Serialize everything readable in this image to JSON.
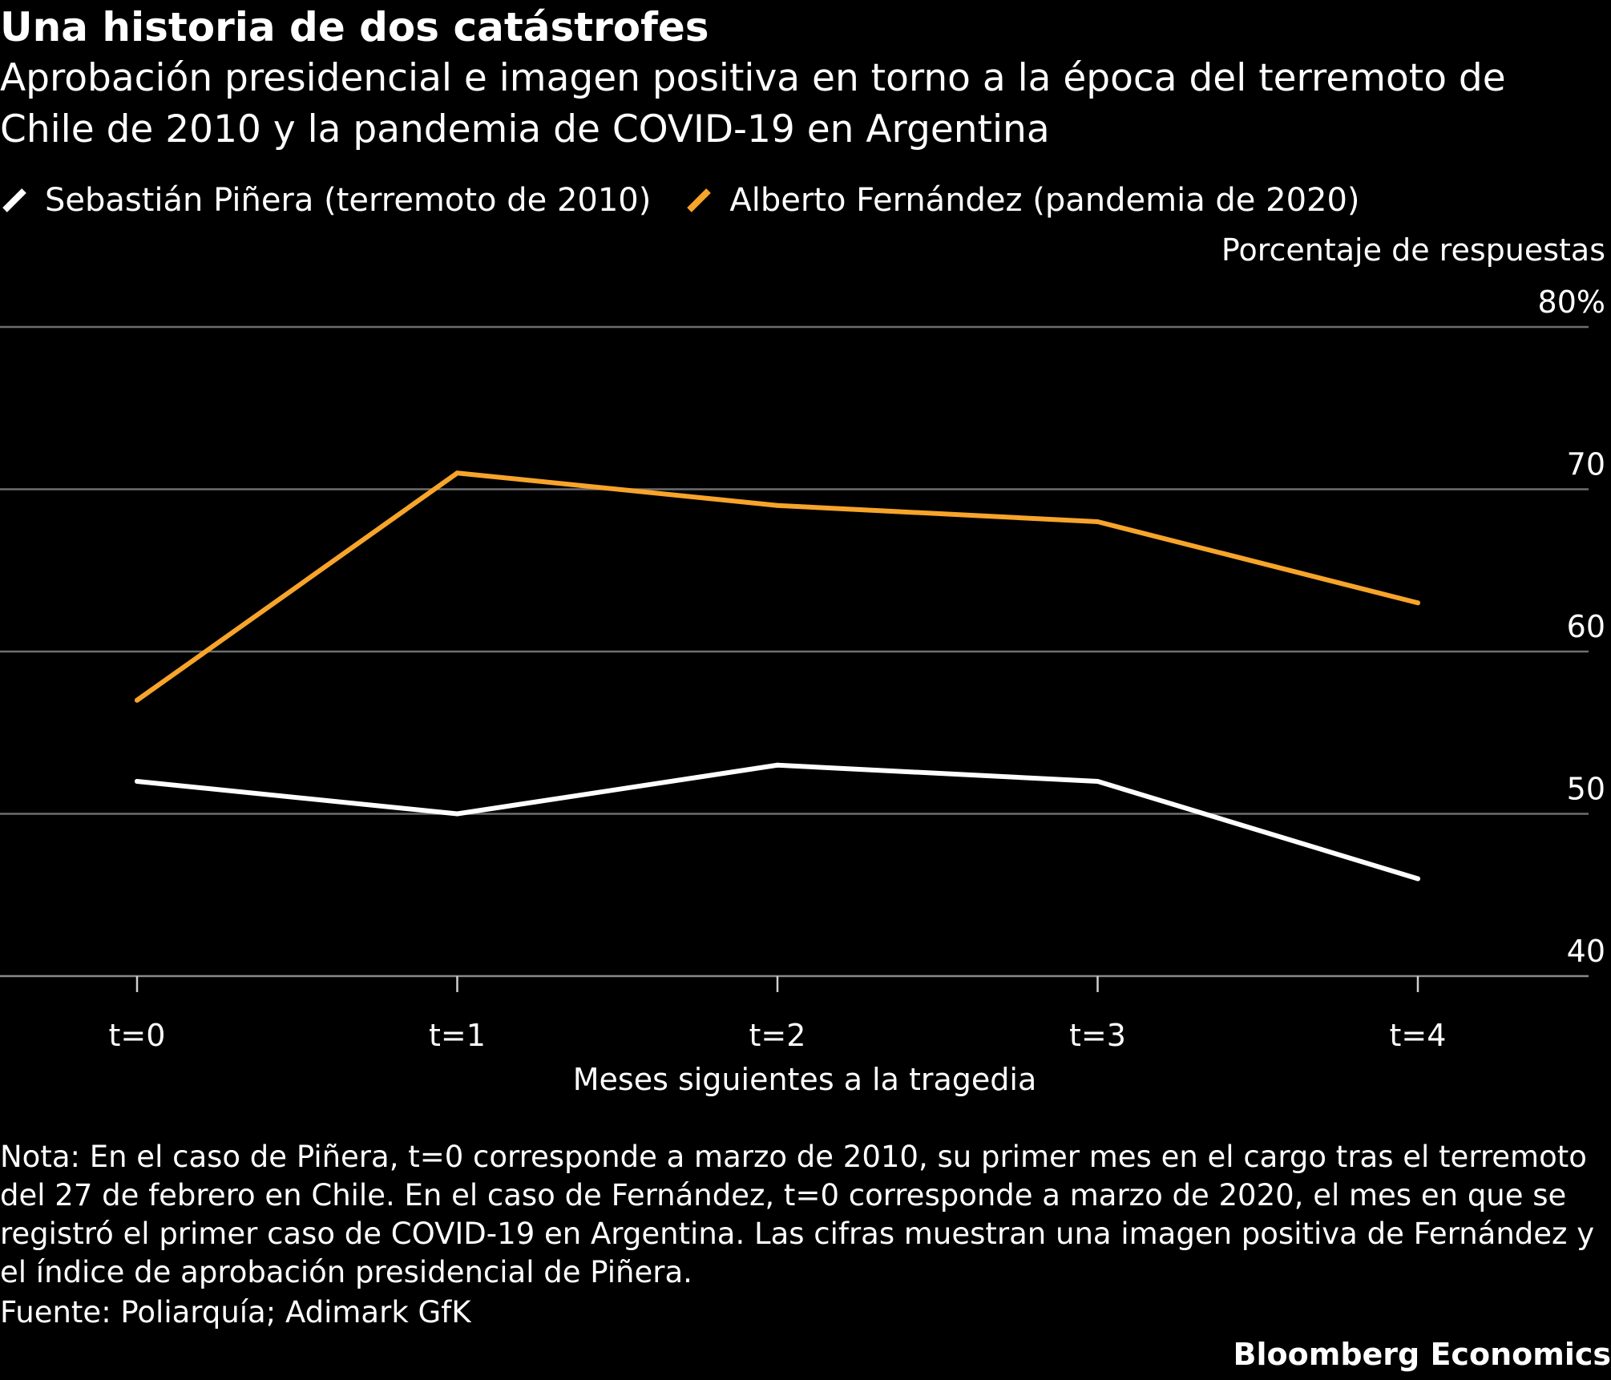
{
  "header": {
    "title": "Una historia de dos catástrofes",
    "subtitle": "Aprobación presidencial e imagen positiva en torno a la época del terremoto de Chile de 2010 y la pandemia de COVID-19 en Argentina"
  },
  "chart_data": {
    "type": "line",
    "x": [
      "t=0",
      "t=1",
      "t=2",
      "t=3",
      "t=4"
    ],
    "xlabel": "Meses siguientes a la tragedia",
    "ylabel": "Porcentaje de respuestas",
    "ylim": [
      40,
      80
    ],
    "yticks": [
      40,
      50,
      60,
      70,
      80
    ],
    "ytick_labels": [
      "40",
      "50",
      "60",
      "70",
      "80%"
    ],
    "grid": true,
    "legend_position": "top-left",
    "series": [
      {
        "name": "Sebastián Piñera (terremoto de 2010)",
        "color": "#ffffff",
        "values": [
          52,
          50,
          53,
          52,
          46
        ]
      },
      {
        "name": "Alberto Fernández (pandemia de 2020)",
        "color": "#f7a42a",
        "values": [
          57,
          71,
          69,
          68,
          63
        ]
      }
    ]
  },
  "footer": {
    "note": "Nota: En el caso de Piñera, t=0 corresponde a marzo de 2010, su primer mes en el cargo tras el terremoto del 27 de febrero en Chile. En el caso de Fernández, t=0 corresponde a marzo de 2020, el mes en que se registró el primer caso de COVID-19 en Argentina. Las cifras muestran una imagen positiva de Fernández y el índice de aprobación presidencial de Piñera.",
    "source": "Fuente: Poliarquía; Adimark GfK",
    "brand": "Bloomberg Economics"
  }
}
